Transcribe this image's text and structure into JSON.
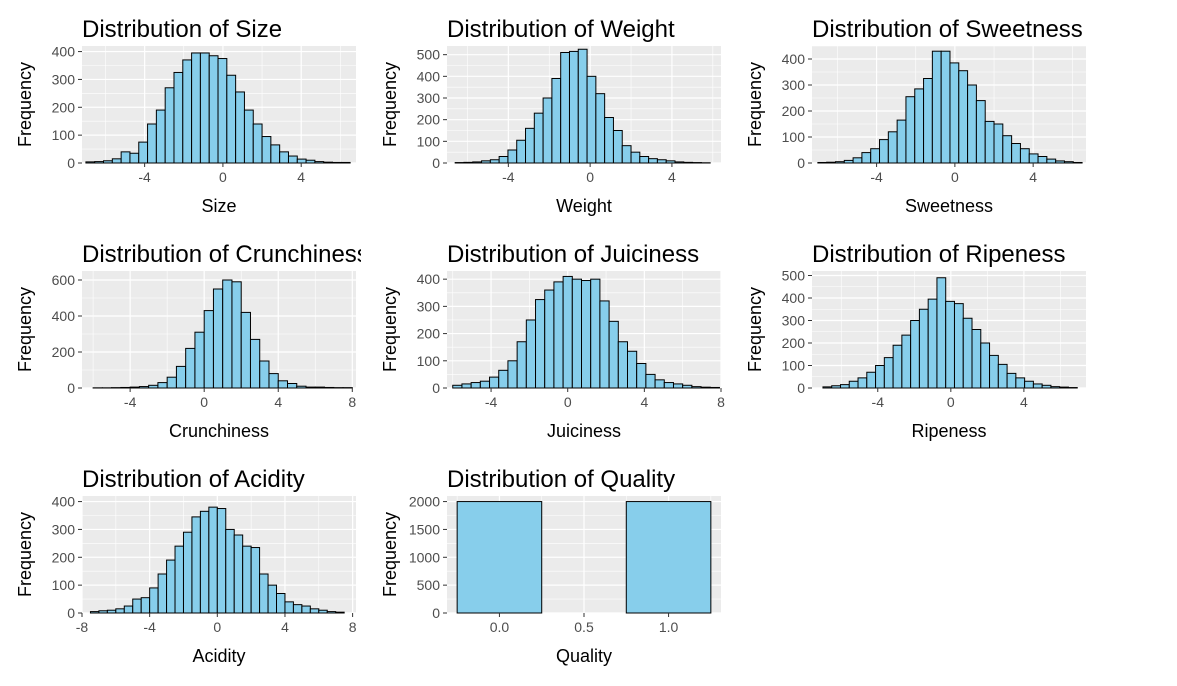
{
  "style": {
    "bar_fill": "#87ceeb",
    "bar_stroke": "#000000",
    "panel_background": "#ebebeb",
    "grid_major": "#ffffff",
    "tick_text": "#4d4d4d",
    "text": "#000000"
  },
  "chart_data": [
    {
      "type": "bar",
      "title": "Distribution of Size",
      "xlabel": "Size",
      "ylabel": "Frequency",
      "xlim": [
        -7.2,
        6.8
      ],
      "ylim": [
        0,
        420
      ],
      "xticks": [
        -4,
        0,
        4
      ],
      "xtick_labels": [
        "-4",
        "0",
        "4"
      ],
      "yticks": [
        0,
        100,
        200,
        300,
        400
      ],
      "ytick_labels": [
        "0",
        "100",
        "200",
        "300",
        "400"
      ],
      "bin_start": -7.0,
      "bin_width": 0.45,
      "values": [
        4,
        5,
        8,
        15,
        40,
        35,
        75,
        140,
        190,
        270,
        325,
        370,
        395,
        395,
        385,
        375,
        315,
        255,
        190,
        140,
        95,
        65,
        40,
        25,
        14,
        10,
        5,
        3,
        2,
        2
      ]
    },
    {
      "type": "bar",
      "title": "Distribution of Weight",
      "xlabel": "Weight",
      "ylabel": "Frequency",
      "xlim": [
        -7.0,
        6.4
      ],
      "ylim": [
        0,
        540
      ],
      "xticks": [
        -4,
        0,
        4
      ],
      "xtick_labels": [
        "-4",
        "0",
        "4"
      ],
      "yticks": [
        0,
        100,
        200,
        300,
        400,
        500
      ],
      "ytick_labels": [
        "0",
        "100",
        "200",
        "300",
        "400",
        "500"
      ],
      "bin_start": -6.6,
      "bin_width": 0.43,
      "values": [
        2,
        3,
        5,
        10,
        15,
        30,
        60,
        105,
        160,
        230,
        300,
        390,
        510,
        515,
        525,
        400,
        320,
        210,
        150,
        80,
        50,
        30,
        20,
        15,
        10,
        5,
        3,
        2,
        1
      ]
    },
    {
      "type": "bar",
      "title": "Distribution of Sweetness",
      "xlabel": "Sweetness",
      "ylabel": "Frequency",
      "xlim": [
        -7.3,
        6.7
      ],
      "ylim": [
        0,
        450
      ],
      "xticks": [
        -4,
        0,
        4
      ],
      "xtick_labels": [
        "-4",
        "0",
        "4"
      ],
      "yticks": [
        0,
        100,
        200,
        300,
        400
      ],
      "ytick_labels": [
        "0",
        "100",
        "200",
        "300",
        "400"
      ],
      "bin_start": -7.0,
      "bin_width": 0.45,
      "values": [
        2,
        3,
        5,
        10,
        20,
        40,
        55,
        90,
        120,
        165,
        255,
        285,
        325,
        430,
        430,
        385,
        355,
        300,
        240,
        160,
        150,
        105,
        75,
        55,
        35,
        25,
        15,
        8,
        5,
        2
      ]
    },
    {
      "type": "bar",
      "title": "Distribution of Crunchiness",
      "xlabel": "Crunchiness",
      "ylabel": "Frequency",
      "xlim": [
        -6.6,
        8.2
      ],
      "ylim": [
        0,
        650
      ],
      "xticks": [
        -4,
        0,
        4,
        8
      ],
      "xtick_labels": [
        "-4",
        "0",
        "4",
        "8"
      ],
      "yticks": [
        0,
        200,
        400,
        600
      ],
      "ytick_labels": [
        "0",
        "200",
        "400",
        "600"
      ],
      "bin_start": -6.0,
      "bin_width": 0.5,
      "values": [
        1,
        1,
        2,
        3,
        5,
        8,
        15,
        30,
        60,
        120,
        220,
        310,
        430,
        550,
        600,
        590,
        420,
        270,
        150,
        80,
        40,
        25,
        10,
        5,
        5,
        3,
        2,
        2
      ]
    },
    {
      "type": "bar",
      "title": "Distribution of Juiciness",
      "xlabel": "Juiciness",
      "ylabel": "Frequency",
      "xlim": [
        -6.3,
        8.0
      ],
      "ylim": [
        0,
        430
      ],
      "xticks": [
        -4,
        0,
        4,
        8
      ],
      "xtick_labels": [
        "-4",
        "0",
        "4",
        "8"
      ],
      "yticks": [
        0,
        100,
        200,
        300,
        400
      ],
      "ytick_labels": [
        "0",
        "100",
        "200",
        "300",
        "400"
      ],
      "bin_start": -6.0,
      "bin_width": 0.48,
      "values": [
        10,
        15,
        20,
        25,
        40,
        65,
        100,
        170,
        250,
        325,
        360,
        390,
        410,
        400,
        395,
        400,
        320,
        245,
        170,
        135,
        90,
        50,
        30,
        20,
        15,
        10,
        5,
        3,
        2
      ]
    },
    {
      "type": "bar",
      "title": "Distribution of Ripeness",
      "xlabel": "Ripeness",
      "ylabel": "Frequency",
      "xlim": [
        -7.6,
        7.4
      ],
      "ylim": [
        0,
        520
      ],
      "xticks": [
        -4,
        0,
        4
      ],
      "xtick_labels": [
        "-4",
        "0",
        "4"
      ],
      "yticks": [
        0,
        100,
        200,
        300,
        400,
        500
      ],
      "ytick_labels": [
        "0",
        "100",
        "200",
        "300",
        "400",
        "500"
      ],
      "bin_start": -7.0,
      "bin_width": 0.48,
      "values": [
        5,
        10,
        15,
        30,
        45,
        70,
        100,
        135,
        190,
        235,
        300,
        350,
        395,
        490,
        385,
        375,
        310,
        260,
        200,
        145,
        105,
        65,
        45,
        30,
        18,
        12,
        6,
        4,
        2
      ]
    },
    {
      "type": "bar",
      "title": "Distribution of Acidity",
      "xlabel": "Acidity",
      "ylabel": "Frequency",
      "xlim": [
        -8.0,
        8.2
      ],
      "ylim": [
        0,
        420
      ],
      "xticks": [
        -8,
        -4,
        0,
        4,
        8
      ],
      "xtick_labels": [
        "-8",
        "-4",
        "0",
        "4",
        "8"
      ],
      "yticks": [
        0,
        100,
        200,
        300,
        400
      ],
      "ytick_labels": [
        "0",
        "100",
        "200",
        "300",
        "400"
      ],
      "bin_start": -7.5,
      "bin_width": 0.5,
      "values": [
        5,
        8,
        10,
        15,
        25,
        50,
        55,
        90,
        140,
        190,
        240,
        290,
        345,
        365,
        380,
        375,
        300,
        280,
        240,
        235,
        140,
        100,
        70,
        40,
        30,
        25,
        15,
        10,
        5,
        3
      ]
    },
    {
      "type": "bar",
      "title": "Distribution of Quality",
      "xlabel": "Quality",
      "ylabel": "Frequency",
      "xlim": [
        -0.31,
        1.31
      ],
      "ylim": [
        0,
        2100
      ],
      "xticks": [
        0,
        0.5,
        1
      ],
      "xtick_labels": [
        "0.0",
        "0.5",
        "1.0"
      ],
      "yticks": [
        0,
        500,
        1000,
        1500,
        2000
      ],
      "ytick_labels": [
        "0",
        "500",
        "1000",
        "1500",
        "2000"
      ],
      "bin_start": -0.25,
      "bin_width": 0.5,
      "values": [
        2000,
        0,
        2000
      ]
    }
  ]
}
